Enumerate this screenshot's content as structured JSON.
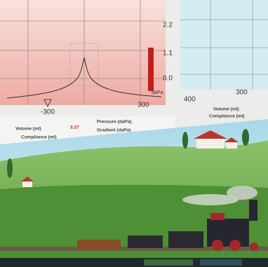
{
  "left_graph": {
    "y_labels": [
      "2.2",
      "1.1",
      "0.0"
    ],
    "x_labels": [
      "-300",
      "300"
    ],
    "unit": "daPa"
  },
  "right_graph": {
    "x_labels": [
      "400",
      "300"
    ]
  },
  "readouts": {
    "volume_label": "Volume (ml)",
    "volume_value": "3.27",
    "compliance_label": "Compliance (ml)",
    "pressure_label": "Pressure (daPa)",
    "gradient_label": "Gradient (daPa)",
    "right_volume_label": "Volume (ml)",
    "right_compliance_label": "Compliance (ml)"
  }
}
